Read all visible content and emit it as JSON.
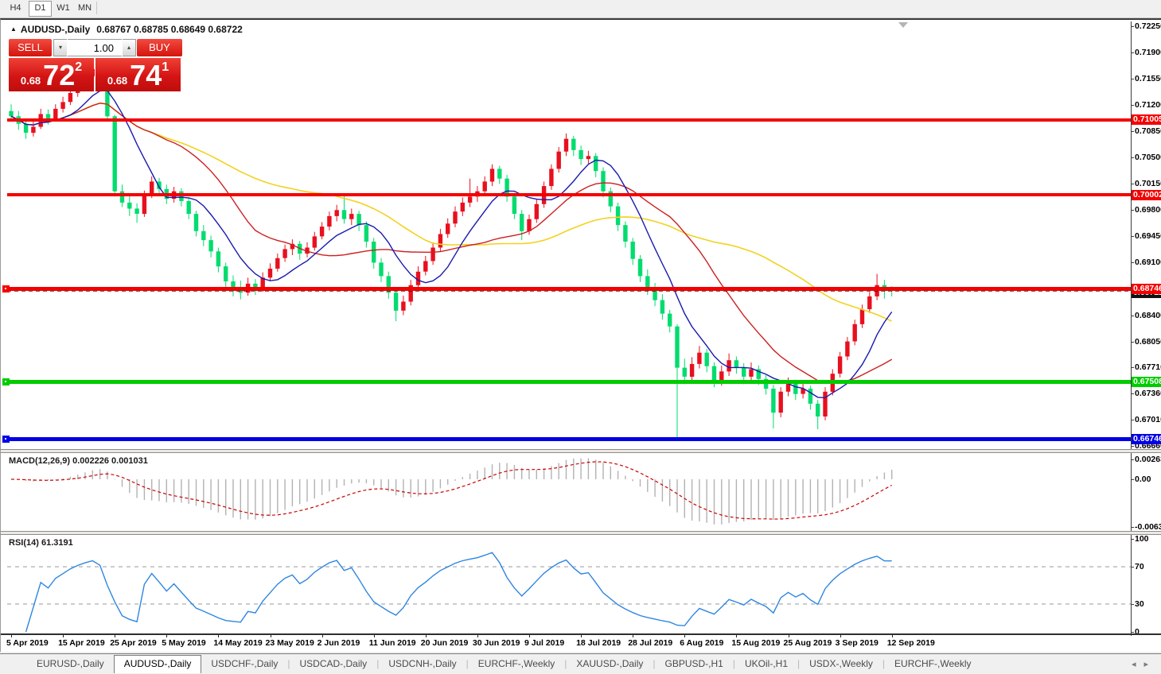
{
  "toolbar": {
    "timeframes": [
      {
        "label": "H4",
        "active": false
      },
      {
        "label": "D1",
        "active": true
      },
      {
        "label": "W1",
        "active": false
      },
      {
        "label": "MN",
        "active": false
      }
    ]
  },
  "header": {
    "symbol": "AUDUSD-,Daily",
    "ohlc": "0.68767 0.68785 0.68649 0.68722"
  },
  "trade_panel": {
    "sell_label": "SELL",
    "buy_label": "BUY",
    "volume": "1.00",
    "sell_small": "0.68",
    "sell_big": "72",
    "sell_sup": "2",
    "buy_small": "0.68",
    "buy_big": "74",
    "buy_sup": "1"
  },
  "chart_data": {
    "type": "candlestick",
    "symbol": "AUDUSD-,Daily",
    "colors": {
      "bull": "#e8101e",
      "bear": "#00dc6e",
      "ma_fast": "#1a1aae",
      "ma_mid": "#cc2020",
      "ma_slow": "#f2d21f",
      "background": "#ffffff"
    },
    "price_axis": [
      "0.72250",
      "0.71900",
      "0.71550",
      "0.71200",
      "0.70850",
      "0.70500",
      "0.70150",
      "0.69800",
      "0.69450",
      "0.69100",
      "0.68400",
      "0.68050",
      "0.67710",
      "0.67360",
      "0.67010",
      "0.66660"
    ],
    "hlines": [
      {
        "price": 0.71005,
        "label": "0.71005",
        "color": "#f40000",
        "width": 4,
        "handle": false
      },
      {
        "price": 0.70002,
        "label": "0.70002",
        "color": "#f40000",
        "width": 4,
        "handle": false
      },
      {
        "price": 0.68746,
        "label": "0.68746",
        "color": "#f40000",
        "width": 5,
        "handle": true
      },
      {
        "price": 0.67508,
        "label": "0.67508",
        "color": "#00cc00",
        "width": 5,
        "handle": true
      },
      {
        "price": 0.66746,
        "label": "0.66746",
        "color": "#0000e6",
        "width": 5,
        "handle": true
      }
    ],
    "bid": {
      "price": 0.68722,
      "label": "0.68722",
      "color": "#111111"
    },
    "date_labels": [
      "5 Apr 2019",
      "15 Apr 2019",
      "25 Apr 2019",
      "5 May 2019",
      "14 May 2019",
      "23 May 2019",
      "2 Jun 2019",
      "11 Jun 2019",
      "20 Jun 2019",
      "30 Jun 2019",
      "9 Jul 2019",
      "18 Jul 2019",
      "28 Jul 2019",
      "6 Aug 2019",
      "15 Aug 2019",
      "25 Aug 2019",
      "3 Sep 2019",
      "12 Sep 2019"
    ],
    "candles": [
      [
        0.7112,
        0.7121,
        0.7098,
        0.7105
      ],
      [
        0.7105,
        0.7112,
        0.7087,
        0.7095
      ],
      [
        0.7095,
        0.7101,
        0.7075,
        0.7083
      ],
      [
        0.7083,
        0.7098,
        0.7078,
        0.7091
      ],
      [
        0.7091,
        0.7115,
        0.7088,
        0.7108
      ],
      [
        0.7108,
        0.7114,
        0.7094,
        0.7102
      ],
      [
        0.7102,
        0.7121,
        0.7099,
        0.7115
      ],
      [
        0.7115,
        0.7131,
        0.711,
        0.7124
      ],
      [
        0.7124,
        0.7142,
        0.712,
        0.7136
      ],
      [
        0.7136,
        0.7153,
        0.7131,
        0.7147
      ],
      [
        0.7147,
        0.7164,
        0.7143,
        0.7158
      ],
      [
        0.7158,
        0.7175,
        0.7153,
        0.7168
      ],
      [
        0.7168,
        0.7172,
        0.715,
        0.716
      ],
      [
        0.716,
        0.7163,
        0.7098,
        0.7105
      ],
      [
        0.7105,
        0.7107,
        0.6998,
        0.7005
      ],
      [
        0.7005,
        0.7014,
        0.6984,
        0.699
      ],
      [
        0.699,
        0.6999,
        0.6972,
        0.6982
      ],
      [
        0.6982,
        0.6989,
        0.6963,
        0.6975
      ],
      [
        0.6975,
        0.7006,
        0.6971,
        0.7002
      ],
      [
        0.7002,
        0.7025,
        0.6996,
        0.7018
      ],
      [
        0.7018,
        0.7023,
        0.7001,
        0.7008
      ],
      [
        0.7008,
        0.7014,
        0.6988,
        0.6995
      ],
      [
        0.6995,
        0.7011,
        0.699,
        0.7005
      ],
      [
        0.7005,
        0.7009,
        0.6985,
        0.6992
      ],
      [
        0.6992,
        0.6996,
        0.6968,
        0.6975
      ],
      [
        0.6975,
        0.6979,
        0.6945,
        0.6952
      ],
      [
        0.6952,
        0.696,
        0.6932,
        0.694
      ],
      [
        0.694,
        0.6946,
        0.6917,
        0.6925
      ],
      [
        0.6925,
        0.693,
        0.6897,
        0.6905
      ],
      [
        0.6905,
        0.691,
        0.6877,
        0.6885
      ],
      [
        0.6885,
        0.6893,
        0.6865,
        0.6877
      ],
      [
        0.6877,
        0.6886,
        0.6861,
        0.687
      ],
      [
        0.687,
        0.689,
        0.6866,
        0.6882
      ],
      [
        0.6882,
        0.6888,
        0.6867,
        0.6876
      ],
      [
        0.6876,
        0.6897,
        0.6871,
        0.689
      ],
      [
        0.689,
        0.6909,
        0.6885,
        0.6902
      ],
      [
        0.6902,
        0.6922,
        0.6898,
        0.6916
      ],
      [
        0.6916,
        0.6934,
        0.6911,
        0.6928
      ],
      [
        0.6928,
        0.6941,
        0.692,
        0.6935
      ],
      [
        0.6935,
        0.6939,
        0.6914,
        0.6922
      ],
      [
        0.6922,
        0.6937,
        0.6917,
        0.693
      ],
      [
        0.693,
        0.6951,
        0.6926,
        0.6945
      ],
      [
        0.6945,
        0.6964,
        0.6941,
        0.6958
      ],
      [
        0.6958,
        0.6978,
        0.6953,
        0.6972
      ],
      [
        0.6972,
        0.6987,
        0.6965,
        0.698
      ],
      [
        0.698,
        0.6999,
        0.6962,
        0.6968
      ],
      [
        0.6968,
        0.6982,
        0.696,
        0.6975
      ],
      [
        0.6975,
        0.6979,
        0.6952,
        0.696
      ],
      [
        0.696,
        0.6965,
        0.693,
        0.6938
      ],
      [
        0.6938,
        0.6943,
        0.6902,
        0.691
      ],
      [
        0.691,
        0.6916,
        0.6884,
        0.6892
      ],
      [
        0.6892,
        0.6898,
        0.6862,
        0.687
      ],
      [
        0.687,
        0.6874,
        0.6832,
        0.6846
      ],
      [
        0.6846,
        0.6866,
        0.684,
        0.6858
      ],
      [
        0.6858,
        0.6887,
        0.6853,
        0.688
      ],
      [
        0.688,
        0.6905,
        0.6875,
        0.6898
      ],
      [
        0.6898,
        0.6919,
        0.6893,
        0.6912
      ],
      [
        0.6912,
        0.6937,
        0.6907,
        0.693
      ],
      [
        0.693,
        0.6955,
        0.6925,
        0.6948
      ],
      [
        0.6948,
        0.6969,
        0.6943,
        0.6962
      ],
      [
        0.6962,
        0.6985,
        0.6957,
        0.6978
      ],
      [
        0.6978,
        0.6997,
        0.6972,
        0.699
      ],
      [
        0.699,
        0.7022,
        0.6984,
        0.6998
      ],
      [
        0.6998,
        0.7012,
        0.6991,
        0.7005
      ],
      [
        0.7005,
        0.7025,
        0.6999,
        0.7018
      ],
      [
        0.7018,
        0.7041,
        0.7012,
        0.7035
      ],
      [
        0.7035,
        0.7039,
        0.7015,
        0.7022
      ],
      [
        0.7022,
        0.7027,
        0.6991,
        0.6998
      ],
      [
        0.6998,
        0.7003,
        0.6968,
        0.6975
      ],
      [
        0.6975,
        0.698,
        0.694,
        0.6952
      ],
      [
        0.6952,
        0.6974,
        0.6947,
        0.6968
      ],
      [
        0.6968,
        0.6994,
        0.6963,
        0.6988
      ],
      [
        0.6988,
        0.7018,
        0.6983,
        0.7012
      ],
      [
        0.7012,
        0.7041,
        0.7007,
        0.7035
      ],
      [
        0.7035,
        0.7064,
        0.703,
        0.7058
      ],
      [
        0.7058,
        0.7082,
        0.7052,
        0.7075
      ],
      [
        0.7075,
        0.7079,
        0.7052,
        0.706
      ],
      [
        0.706,
        0.7066,
        0.704,
        0.7048
      ],
      [
        0.7048,
        0.7059,
        0.7042,
        0.7052
      ],
      [
        0.7052,
        0.7056,
        0.7024,
        0.7032
      ],
      [
        0.7032,
        0.7037,
        0.6997,
        0.7005
      ],
      [
        0.7005,
        0.701,
        0.6977,
        0.6985
      ],
      [
        0.6985,
        0.699,
        0.6952,
        0.696
      ],
      [
        0.696,
        0.6965,
        0.693,
        0.6938
      ],
      [
        0.6938,
        0.6943,
        0.6907,
        0.6915
      ],
      [
        0.6915,
        0.692,
        0.6884,
        0.6892
      ],
      [
        0.6892,
        0.6901,
        0.6867,
        0.6875
      ],
      [
        0.6875,
        0.6883,
        0.6852,
        0.686
      ],
      [
        0.686,
        0.6868,
        0.6834,
        0.6842
      ],
      [
        0.6842,
        0.6847,
        0.6817,
        0.6825
      ],
      [
        0.6825,
        0.6828,
        0.6677,
        0.677
      ],
      [
        0.677,
        0.6782,
        0.6748,
        0.6758
      ],
      [
        0.6758,
        0.6784,
        0.6752,
        0.6775
      ],
      [
        0.6775,
        0.6799,
        0.6769,
        0.679
      ],
      [
        0.679,
        0.6795,
        0.6764,
        0.6772
      ],
      [
        0.6772,
        0.6777,
        0.6744,
        0.6752
      ],
      [
        0.6752,
        0.6773,
        0.6746,
        0.6765
      ],
      [
        0.6765,
        0.6789,
        0.6759,
        0.678
      ],
      [
        0.678,
        0.6785,
        0.6762,
        0.677
      ],
      [
        0.677,
        0.6776,
        0.6748,
        0.6758
      ],
      [
        0.6758,
        0.6777,
        0.6752,
        0.6768
      ],
      [
        0.6768,
        0.6773,
        0.6747,
        0.6755
      ],
      [
        0.6755,
        0.676,
        0.6734,
        0.6742
      ],
      [
        0.6742,
        0.6747,
        0.6689,
        0.671
      ],
      [
        0.671,
        0.6744,
        0.6704,
        0.6738
      ],
      [
        0.6738,
        0.6757,
        0.6732,
        0.675
      ],
      [
        0.675,
        0.6754,
        0.6727,
        0.6735
      ],
      [
        0.6735,
        0.6749,
        0.6729,
        0.6742
      ],
      [
        0.6742,
        0.6746,
        0.6714,
        0.6722
      ],
      [
        0.6722,
        0.6727,
        0.6688,
        0.6705
      ],
      [
        0.6705,
        0.6744,
        0.67,
        0.6738
      ],
      [
        0.6738,
        0.6768,
        0.6733,
        0.6762
      ],
      [
        0.6762,
        0.6791,
        0.6757,
        0.6785
      ],
      [
        0.6785,
        0.6811,
        0.678,
        0.6805
      ],
      [
        0.6805,
        0.6834,
        0.68,
        0.6828
      ],
      [
        0.6828,
        0.6854,
        0.6823,
        0.6848
      ],
      [
        0.6848,
        0.6871,
        0.6843,
        0.6865
      ],
      [
        0.6865,
        0.6895,
        0.686,
        0.688
      ],
      [
        0.688,
        0.6887,
        0.6862,
        0.6872
      ],
      [
        0.68767,
        0.68785,
        0.68649,
        0.68722
      ]
    ],
    "indicators": {
      "macd": {
        "label": "MACD(12,26,9) 0.002226 0.001031",
        "fast": 12,
        "slow": 26,
        "signal": 9,
        "axis": [
          "0.002633",
          "0.00",
          "-0.006325"
        ],
        "hist_color": "#b2b2b2",
        "signal_color": "#cc0000"
      },
      "rsi": {
        "label": "RSI(14) 61.3191",
        "period": 14,
        "axis": [
          "100",
          "70",
          "30",
          "0"
        ],
        "levels": [
          70,
          30
        ],
        "color": "#2e86e0",
        "level_color": "#b5b5b5"
      }
    }
  },
  "tabs": {
    "items": [
      {
        "label": "EURUSD-,Daily",
        "active": false
      },
      {
        "label": "AUDUSD-,Daily",
        "active": true
      },
      {
        "label": "USDCHF-,Daily",
        "active": false
      },
      {
        "label": "USDCAD-,Daily",
        "active": false
      },
      {
        "label": "USDCNH-,Daily",
        "active": false
      },
      {
        "label": "EURCHF-,Weekly",
        "active": false
      },
      {
        "label": "XAUUSD-,Daily",
        "active": false
      },
      {
        "label": "GBPUSD-,H1",
        "active": false
      },
      {
        "label": "UKOil-,H1",
        "active": false
      },
      {
        "label": "USDX-,Weekly",
        "active": false
      },
      {
        "label": "EURCHF-,Weekly",
        "active": false
      }
    ],
    "scroll_left": "◂",
    "scroll_right": "▸"
  }
}
